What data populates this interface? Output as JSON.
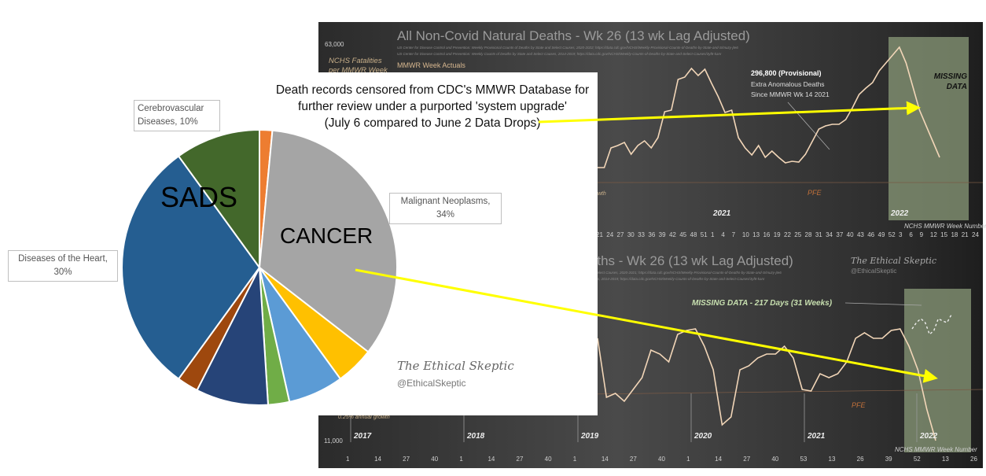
{
  "headline": {
    "line1": "Death records censored from CDC's MMWR Database for",
    "line2": "further review under a purported 'system upgrade'",
    "line3": "(July 6 compared to June 2 Data Drops)"
  },
  "watermark": {
    "name": "The Ethical Skeptic",
    "handle": "@EthicalSkeptic"
  },
  "colors": {
    "arrow": "#ffff00",
    "panel": "#3a3a3a",
    "missing_shade": "#8a9a78",
    "line": "#f2d6b8"
  },
  "chart_data": [
    {
      "type": "pie",
      "labels_shown": {
        "sads": "SADS",
        "cancer": "CANCER"
      },
      "slices": [
        {
          "label": "",
          "value": 1.5,
          "color": "#ed7d31"
        },
        {
          "label": "Malignant Neoplasms,",
          "pct": "34%",
          "value": 34,
          "color": "#a5a5a5"
        },
        {
          "label": "",
          "value": 4.5,
          "color": "#ffc000"
        },
        {
          "label": "",
          "value": 6.5,
          "color": "#5b9bd5"
        },
        {
          "label": "",
          "value": 2.5,
          "color": "#70ad47"
        },
        {
          "label": "",
          "value": 8.5,
          "color": "#264478"
        },
        {
          "label": "",
          "value": 2.5,
          "color": "#9e480e"
        },
        {
          "label": "Diseases of the Heart,",
          "pct": "30%",
          "value": 30,
          "color": "#255e91"
        },
        {
          "label": "Cerebrovascular",
          "label2": "Diseases, 10%",
          "value": 10,
          "color": "#43682b"
        }
      ]
    },
    {
      "type": "line",
      "title": "All Non-Covid Natural Deaths - Wk 26 (13 wk Lag Adjusted)",
      "source1": "US Center for Disease Control and Prevention: Weekly Provisional Counts of Deaths by State and Select Causes, 2020-2022; https://data.cdc.gov/NCHS/Weekly-Provisional-Counts-of-Deaths-by-State-and-S/muzy-jte6",
      "source2": "US Center for Disease Control and Prevention: Weekly Counts of Deaths by State and Select Causes, 2014-2019; https://data.cdc.gov/NCHS/Weekly-Counts-of-Deaths-by-State-and-Select-Causes/3yf8-kanr",
      "y_top_label": "63,000",
      "ylabel": "NCHS Fatalities per MMWR Week",
      "legend": "MMWR Week Actuals",
      "growth_label": "0.25% annual growth",
      "pfe_label": "PFE",
      "annotation": {
        "value": "296,800 (Provisional)",
        "line2": "Extra Anomalous Deaths",
        "line3": "Since MMWR Wk 14 2021"
      },
      "missing_label": "MISSING DATA",
      "xlabel": "NCHS MMWR Week Number",
      "years": [
        "2021",
        "2022"
      ],
      "xticks": [
        "21",
        "24",
        "27",
        "30",
        "33",
        "36",
        "39",
        "42",
        "45",
        "48",
        "51",
        "1",
        "4",
        "7",
        "10",
        "13",
        "16",
        "19",
        "22",
        "25",
        "28",
        "31",
        "34",
        "37",
        "40",
        "43",
        "46",
        "49",
        "52",
        "3",
        "6",
        "9",
        "12",
        "15",
        "18",
        "21",
        "24"
      ],
      "values": [
        45700,
        45700,
        48200,
        48500,
        48900,
        47400,
        48500,
        49100,
        48200,
        49500,
        52800,
        53000,
        56900,
        57200,
        58300,
        57400,
        58200,
        56400,
        54700,
        52700,
        53000,
        49500,
        48200,
        47300,
        48500,
        47000,
        47800,
        47000,
        46300,
        46500,
        46400,
        47400,
        49000,
        50600,
        51000,
        51200,
        51200,
        51800,
        53300,
        55000,
        55800,
        56500,
        58000,
        59000,
        60000,
        61000,
        59000,
        56000,
        53000,
        51000,
        49000,
        47000
      ]
    },
    {
      "type": "line",
      "title": "All Non-Covid Natural Deaths - Wk 26 (13 wk Lag Adjusted)",
      "source1": "US Center for Disease Control and Prevention: Weekly Provisional Counts of Deaths by State and Select Causes, 2020-2021; https://data.cdc.gov/NCHS/Weekly-Provisional-Counts-of-Deaths-by-State-and-S/muzy-jte6",
      "source2": "US Center for Disease Control and Prevention: Weekly Counts of Deaths by State and Select Causes, 2014-2019; https://data.cdc.gov/NCHS/Weekly-Counts-of-Deaths-by-State-and-Select-Causes/3yf8-kanr",
      "y_bottom_label": "11,000",
      "growth_label": "0.25% annual growth",
      "pfe_label": "PFE",
      "missing_label": "MISSING DATA - 217 Days (31 Weeks)",
      "xlabel": "NCHS MMWR Week Number",
      "years": [
        "2017",
        "2018",
        "2019",
        "2020",
        "2021",
        "2022"
      ],
      "xticks": [
        "1",
        "14",
        "27",
        "40",
        "1",
        "14",
        "27",
        "40",
        "1",
        "14",
        "27",
        "40",
        "1",
        "14",
        "27",
        "40",
        "53",
        "13",
        "26",
        "39",
        "52",
        "13",
        "26"
      ],
      "values": [
        22800,
        15300,
        15800,
        14800,
        16300,
        17800,
        21300,
        20800,
        19800,
        23300,
        23800,
        24000,
        21800,
        18800,
        11800,
        12800,
        18800,
        19300,
        20300,
        20800,
        20800,
        21800,
        20300,
        16300,
        16100,
        18300,
        17800,
        18300,
        19800,
        22800,
        23500,
        22800,
        22800,
        23800,
        24000,
        21800,
        18800,
        13800,
        9800
      ],
      "projection": [
        24000,
        24800,
        25300,
        24800,
        23300,
        23800,
        25300,
        25000,
        24800,
        25800
      ]
    }
  ]
}
